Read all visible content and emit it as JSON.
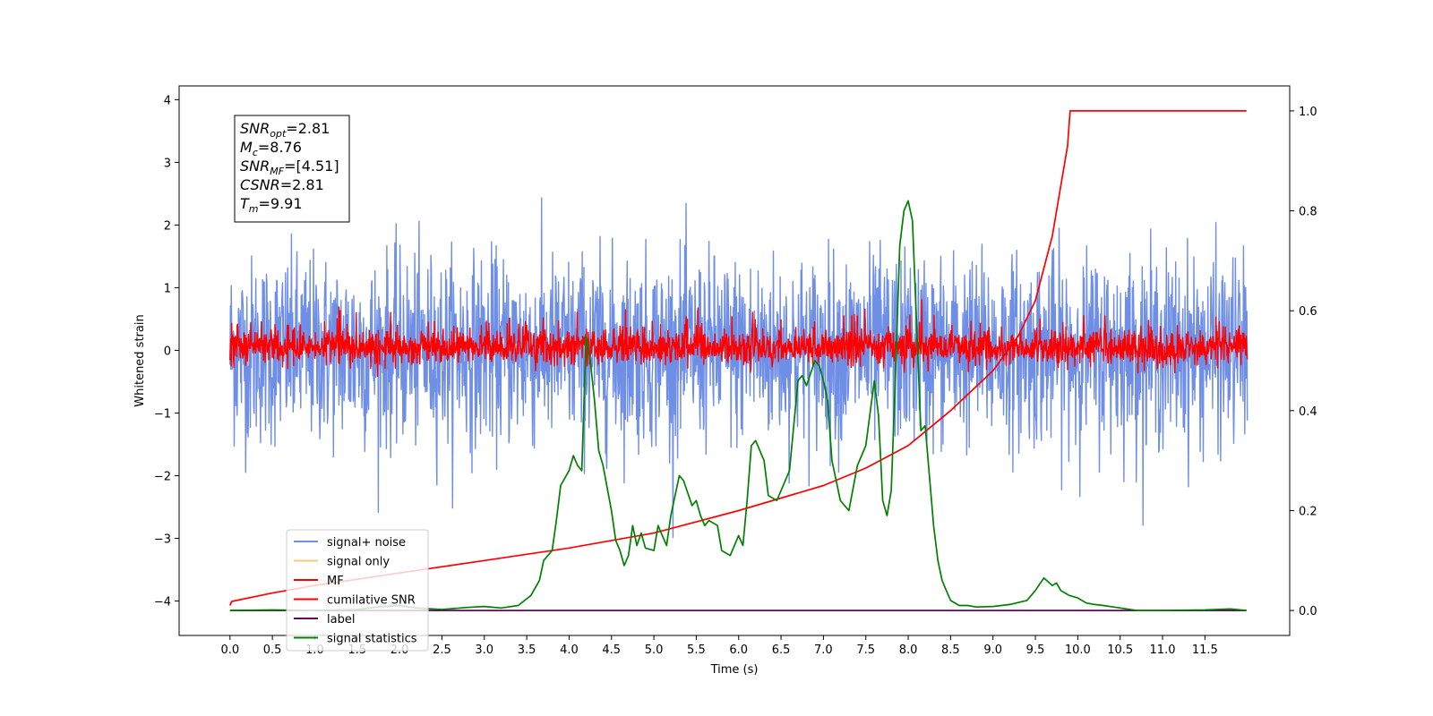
{
  "chart_data": {
    "type": "line",
    "xlabel": "Time (s)",
    "ylabel": "Whitened strain",
    "xlim": [
      -0.6,
      12.5
    ],
    "ylim": [
      -4.55,
      4.22
    ],
    "y2lim": [
      -0.05,
      1.05
    ],
    "x_ticks": [
      "0.0",
      "0.5",
      "1.0",
      "1.5",
      "2.0",
      "2.5",
      "3.0",
      "3.5",
      "4.0",
      "4.5",
      "5.0",
      "5.5",
      "6.0",
      "6.5",
      "7.0",
      "7.5",
      "8.0",
      "8.5",
      "9.0",
      "9.5",
      "10.0",
      "10.5",
      "11.0",
      "11.5"
    ],
    "y_ticks": [
      "4",
      "3",
      "2",
      "1",
      "0",
      "−1",
      "−2",
      "−3",
      "−4"
    ],
    "y2_ticks": [
      "1.0",
      "0.8",
      "0.6",
      "0.4",
      "0.2",
      "0.0"
    ],
    "legend_position": "lower-left",
    "grid": false,
    "annotation": {
      "lines": [
        {
          "main": "SNR",
          "sub": "opt",
          "value": "=2.81"
        },
        {
          "main": "M",
          "sub": "c",
          "value": "=8.76"
        },
        {
          "main": "SNR",
          "sub": "MF",
          "value": "=[4.51]"
        },
        {
          "main": "CSNR",
          "sub": "",
          "value": "=2.81"
        },
        {
          "main": "T",
          "sub": "m",
          "value": "=9.91"
        }
      ]
    },
    "series": [
      {
        "name": "signal+ noise",
        "color": "#6f8ee6",
        "axis": "left",
        "kind": "noise",
        "center": 0.0,
        "band": 1.35,
        "x_range": [
          0.0,
          12.0
        ]
      },
      {
        "name": "signal only",
        "color": "#f5c97a",
        "axis": "left",
        "kind": "line",
        "x": [],
        "y": []
      },
      {
        "name": "MF",
        "color": "#ff0000",
        "axis": "left",
        "kind": "noise",
        "center": 0.05,
        "band": 0.28,
        "x_range": [
          0.0,
          12.0
        ]
      },
      {
        "name": "cumilative SNR",
        "color": "#ff0000",
        "axis": "right",
        "x": [
          0.0,
          0.02,
          0.5,
          1.0,
          2.0,
          3.0,
          4.0,
          5.0,
          6.0,
          7.0,
          7.5,
          8.0,
          8.5,
          9.0,
          9.3,
          9.5,
          9.7,
          9.8,
          9.88,
          9.91,
          10.5,
          11.0,
          11.5,
          11.99
        ],
        "y": [
          0.01,
          0.018,
          0.035,
          0.05,
          0.075,
          0.1,
          0.125,
          0.155,
          0.2,
          0.25,
          0.285,
          0.33,
          0.4,
          0.48,
          0.55,
          0.62,
          0.75,
          0.85,
          0.93,
          1.0,
          1.0,
          1.0,
          1.0,
          1.0
        ]
      },
      {
        "name": "label",
        "color": "#6a006a",
        "axis": "right",
        "x": [
          0.0,
          11.99
        ],
        "y": [
          0.0,
          0.0
        ]
      },
      {
        "name": "signal statistics",
        "color": "#008000",
        "axis": "right",
        "x": [
          0.0,
          0.5,
          1.0,
          1.5,
          1.8,
          2.0,
          2.2,
          2.5,
          2.8,
          3.0,
          3.2,
          3.4,
          3.55,
          3.65,
          3.7,
          3.8,
          3.85,
          3.9,
          4.0,
          4.05,
          4.1,
          4.15,
          4.2,
          4.25,
          4.3,
          4.35,
          4.4,
          4.5,
          4.55,
          4.6,
          4.65,
          4.7,
          4.75,
          4.8,
          4.85,
          4.9,
          5.0,
          5.05,
          5.1,
          5.15,
          5.2,
          5.3,
          5.35,
          5.45,
          5.5,
          5.55,
          5.6,
          5.65,
          5.75,
          5.8,
          5.9,
          6.0,
          6.05,
          6.1,
          6.15,
          6.2,
          6.3,
          6.35,
          6.45,
          6.5,
          6.6,
          6.7,
          6.75,
          6.8,
          6.9,
          6.95,
          7.0,
          7.05,
          7.1,
          7.2,
          7.3,
          7.4,
          7.5,
          7.6,
          7.65,
          7.7,
          7.75,
          7.8,
          7.85,
          7.9,
          7.95,
          8.0,
          8.05,
          8.1,
          8.15,
          8.2,
          8.25,
          8.3,
          8.35,
          8.4,
          8.45,
          8.5,
          8.6,
          8.7,
          8.8,
          9.0,
          9.2,
          9.4,
          9.5,
          9.6,
          9.7,
          9.75,
          9.8,
          9.85,
          9.9,
          10.0,
          10.1,
          10.2,
          10.3,
          10.5,
          10.7,
          11.0,
          11.5,
          11.8,
          11.99
        ],
        "y": [
          0.0,
          0.001,
          0.0,
          0.002,
          0.008,
          0.01,
          0.005,
          0.002,
          0.006,
          0.008,
          0.005,
          0.01,
          0.03,
          0.06,
          0.1,
          0.12,
          0.18,
          0.25,
          0.28,
          0.31,
          0.29,
          0.28,
          0.55,
          0.5,
          0.42,
          0.32,
          0.29,
          0.2,
          0.14,
          0.12,
          0.09,
          0.11,
          0.17,
          0.13,
          0.155,
          0.125,
          0.12,
          0.17,
          0.15,
          0.13,
          0.19,
          0.27,
          0.26,
          0.21,
          0.22,
          0.19,
          0.17,
          0.18,
          0.17,
          0.12,
          0.11,
          0.15,
          0.13,
          0.22,
          0.33,
          0.34,
          0.3,
          0.23,
          0.22,
          0.24,
          0.28,
          0.46,
          0.47,
          0.45,
          0.5,
          0.49,
          0.46,
          0.42,
          0.3,
          0.22,
          0.2,
          0.29,
          0.33,
          0.46,
          0.39,
          0.22,
          0.19,
          0.24,
          0.47,
          0.73,
          0.8,
          0.82,
          0.78,
          0.57,
          0.36,
          0.37,
          0.27,
          0.17,
          0.1,
          0.06,
          0.04,
          0.02,
          0.01,
          0.01,
          0.007,
          0.008,
          0.012,
          0.02,
          0.04,
          0.065,
          0.05,
          0.055,
          0.04,
          0.035,
          0.03,
          0.025,
          0.015,
          0.012,
          0.01,
          0.005,
          0.0,
          0.0,
          0.001,
          0.003,
          0.0
        ]
      }
    ]
  }
}
